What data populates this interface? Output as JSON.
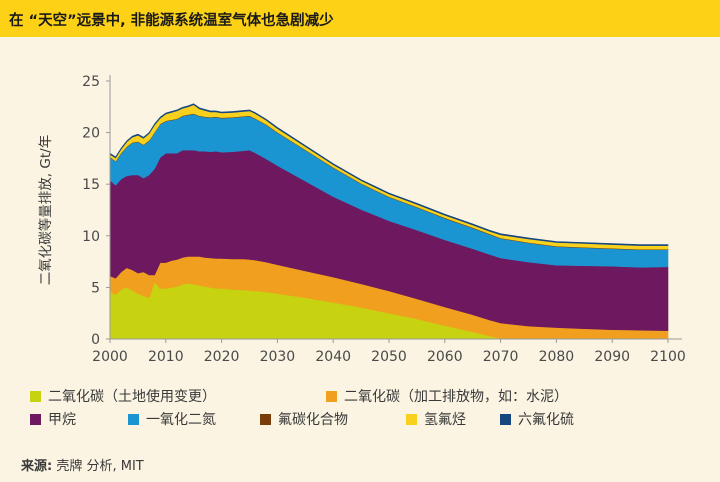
{
  "header": {
    "title": "在 “天空”远景中, 非能源系统温室气体也急剧减少"
  },
  "source": {
    "label": "来源:",
    "text": "壳牌 分析, MIT"
  },
  "chart_data": {
    "type": "area",
    "stacked": true,
    "title": "在 “天空”远景中, 非能源系统温室气体也急剧减少",
    "xlabel": "",
    "ylabel": "二氧化碳等量排放, Gt/年",
    "xlim": [
      2000,
      2100
    ],
    "ylim": [
      0,
      25
    ],
    "grid": false,
    "x_ticks": [
      2000,
      2010,
      2020,
      2030,
      2040,
      2050,
      2060,
      2070,
      2080,
      2090,
      2100
    ],
    "y_ticks": [
      0,
      5,
      10,
      15,
      20,
      25
    ],
    "x": [
      2000,
      2001,
      2002,
      2003,
      2004,
      2005,
      2006,
      2007,
      2008,
      2009,
      2010,
      2011,
      2012,
      2013,
      2014,
      2015,
      2016,
      2017,
      2018,
      2019,
      2020,
      2022,
      2024,
      2025,
      2026,
      2028,
      2030,
      2035,
      2040,
      2045,
      2050,
      2055,
      2060,
      2065,
      2068,
      2070,
      2075,
      2080,
      2085,
      2090,
      2095,
      2100
    ],
    "series": [
      {
        "name": "二氧化碳（土地使用变更）",
        "color": "#c7d310",
        "values": [
          4.6,
          4.3,
          4.8,
          5.0,
          4.7,
          4.4,
          4.2,
          4.0,
          5.5,
          4.9,
          4.9,
          5.0,
          5.1,
          5.3,
          5.4,
          5.3,
          5.2,
          5.1,
          5.0,
          4.9,
          4.9,
          4.8,
          4.75,
          4.7,
          4.65,
          4.55,
          4.4,
          4.0,
          3.55,
          3.05,
          2.5,
          1.95,
          1.3,
          0.7,
          0.3,
          0.05,
          0,
          0,
          0,
          0,
          0,
          0
        ]
      },
      {
        "name": "二氧化碳（加工排放物, 如: 水泥）",
        "color": "#f0a01e",
        "values": [
          1.5,
          1.6,
          1.7,
          1.9,
          2.0,
          2.0,
          2.3,
          2.2,
          0.7,
          2.5,
          2.5,
          2.6,
          2.6,
          2.6,
          2.6,
          2.7,
          2.8,
          2.8,
          2.85,
          2.9,
          2.9,
          2.95,
          3.0,
          3.0,
          3.0,
          2.9,
          2.8,
          2.6,
          2.45,
          2.3,
          2.15,
          1.95,
          1.8,
          1.65,
          1.55,
          1.5,
          1.25,
          1.1,
          1.0,
          0.9,
          0.85,
          0.8
        ]
      },
      {
        "name": "甲烷",
        "color": "#6e1860",
        "values": [
          9.3,
          9.0,
          9.0,
          8.9,
          9.2,
          9.5,
          9.1,
          9.7,
          10.3,
          10.2,
          10.6,
          10.4,
          10.3,
          10.4,
          10.3,
          10.3,
          10.2,
          10.3,
          10.3,
          10.4,
          10.3,
          10.4,
          10.5,
          10.6,
          10.4,
          10.0,
          9.6,
          8.7,
          7.8,
          7.2,
          6.8,
          6.65,
          6.5,
          6.4,
          6.35,
          6.3,
          6.2,
          6.05,
          6.1,
          6.15,
          6.1,
          6.2
        ]
      },
      {
        "name": "一氧化二氮",
        "color": "#1a95d2",
        "values": [
          2.2,
          2.3,
          2.5,
          2.8,
          3.1,
          3.2,
          3.2,
          3.3,
          3.5,
          3.2,
          3.1,
          3.2,
          3.3,
          3.3,
          3.4,
          3.5,
          3.4,
          3.3,
          3.3,
          3.3,
          3.3,
          3.3,
          3.3,
          3.3,
          3.3,
          3.3,
          3.2,
          3.0,
          2.8,
          2.5,
          2.3,
          2.2,
          2.1,
          2.0,
          1.95,
          1.9,
          1.85,
          1.8,
          1.75,
          1.7,
          1.7,
          1.65
        ]
      },
      {
        "name": "氟碳化合物",
        "color": "#7a3d0a",
        "values": [
          0.05,
          0.05,
          0.05,
          0.05,
          0.05,
          0.05,
          0.05,
          0.05,
          0.05,
          0.05,
          0.05,
          0.05,
          0.05,
          0.05,
          0.05,
          0.05,
          0.05,
          0.05,
          0.05,
          0.05,
          0.05,
          0.05,
          0.05,
          0.05,
          0.05,
          0.05,
          0.05,
          0.05,
          0.05,
          0.05,
          0.05,
          0.05,
          0.05,
          0.05,
          0.05,
          0.05,
          0.05,
          0.05,
          0.05,
          0.05,
          0.05,
          0.05
        ]
      },
      {
        "name": "氢氟烃",
        "color": "#f7d11d",
        "values": [
          0.25,
          0.3,
          0.35,
          0.45,
          0.5,
          0.6,
          0.6,
          0.65,
          0.7,
          0.55,
          0.65,
          0.7,
          0.75,
          0.7,
          0.75,
          0.85,
          0.65,
          0.6,
          0.5,
          0.45,
          0.45,
          0.45,
          0.45,
          0.45,
          0.45,
          0.4,
          0.35,
          0.3,
          0.25,
          0.25,
          0.25,
          0.25,
          0.25,
          0.25,
          0.25,
          0.3,
          0.35,
          0.35,
          0.35,
          0.35,
          0.35,
          0.35
        ]
      },
      {
        "name": "六氟化硫",
        "color": "#15467f",
        "values": [
          0.1,
          0.1,
          0.1,
          0.1,
          0.1,
          0.1,
          0.1,
          0.1,
          0.1,
          0.1,
          0.1,
          0.1,
          0.1,
          0.1,
          0.1,
          0.1,
          0.1,
          0.1,
          0.1,
          0.1,
          0.1,
          0.1,
          0.1,
          0.1,
          0.1,
          0.1,
          0.1,
          0.1,
          0.1,
          0.1,
          0.1,
          0.1,
          0.1,
          0.1,
          0.1,
          0.1,
          0.1,
          0.1,
          0.1,
          0.1,
          0.1,
          0.1
        ]
      }
    ],
    "legend": {
      "placement": "bottom",
      "items": [
        {
          "label": "二氧化碳（土地使用变更）",
          "color": "#c7d310"
        },
        {
          "label": "二氧化碳（加工排放物，如：水泥）",
          "color": "#f0a01e"
        },
        {
          "label": "甲烷",
          "color": "#6e1860"
        },
        {
          "label": "一氧化二氮",
          "color": "#1a95d2"
        },
        {
          "label": "氟碳化合物",
          "color": "#7a3d0a"
        },
        {
          "label": "氢氟烃",
          "color": "#f7d11d"
        },
        {
          "label": "六氟化硫",
          "color": "#15467f"
        }
      ]
    }
  }
}
